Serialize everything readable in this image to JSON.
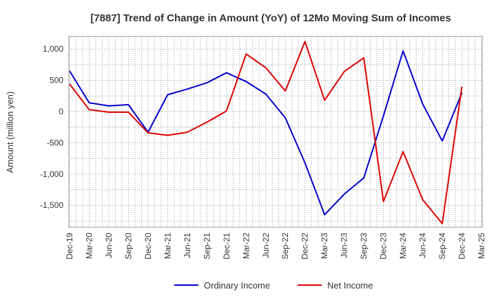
{
  "chart_data": {
    "type": "line",
    "title": "[7887]  Trend of Change in Amount (YoY) of 12Mo Moving Sum of Incomes",
    "xlabel": "",
    "ylabel": "Amount (million yen)",
    "categories": [
      "Dec-19",
      "Mar-20",
      "Jun-20",
      "Sep-20",
      "Dec-20",
      "Mar-21",
      "Jun-21",
      "Sep-21",
      "Dec-21",
      "Mar-22",
      "Jun-22",
      "Sep-22",
      "Dec-22",
      "Mar-23",
      "Jun-23",
      "Sep-23",
      "Dec-23",
      "Mar-24",
      "Jun-24",
      "Sep-24",
      "Dec-24",
      "Mar-25"
    ],
    "y_ticks": [
      1000,
      500,
      0,
      -500,
      -1000,
      -1500
    ],
    "y_tick_labels": [
      "1,000",
      "500",
      "0",
      "-500",
      "-1,000",
      "-1,500"
    ],
    "ylim": [
      -1850,
      1200
    ],
    "grid": true,
    "legend_position": "bottom",
    "series": [
      {
        "name": "Ordinary Income",
        "color": "#0000cc",
        "values": [
          650,
          140,
          90,
          110,
          -330,
          270,
          360,
          460,
          620,
          480,
          280,
          -100,
          -820,
          -1650,
          -1320,
          -1060,
          -70,
          970,
          120,
          -470,
          300,
          null
        ]
      },
      {
        "name": "Net Income",
        "color": "#dd0000",
        "values": [
          440,
          30,
          -10,
          -10,
          -340,
          -380,
          -330,
          -170,
          10,
          920,
          700,
          330,
          1120,
          180,
          640,
          860,
          -1440,
          -640,
          -1410,
          -1790,
          400,
          null
        ]
      }
    ]
  }
}
